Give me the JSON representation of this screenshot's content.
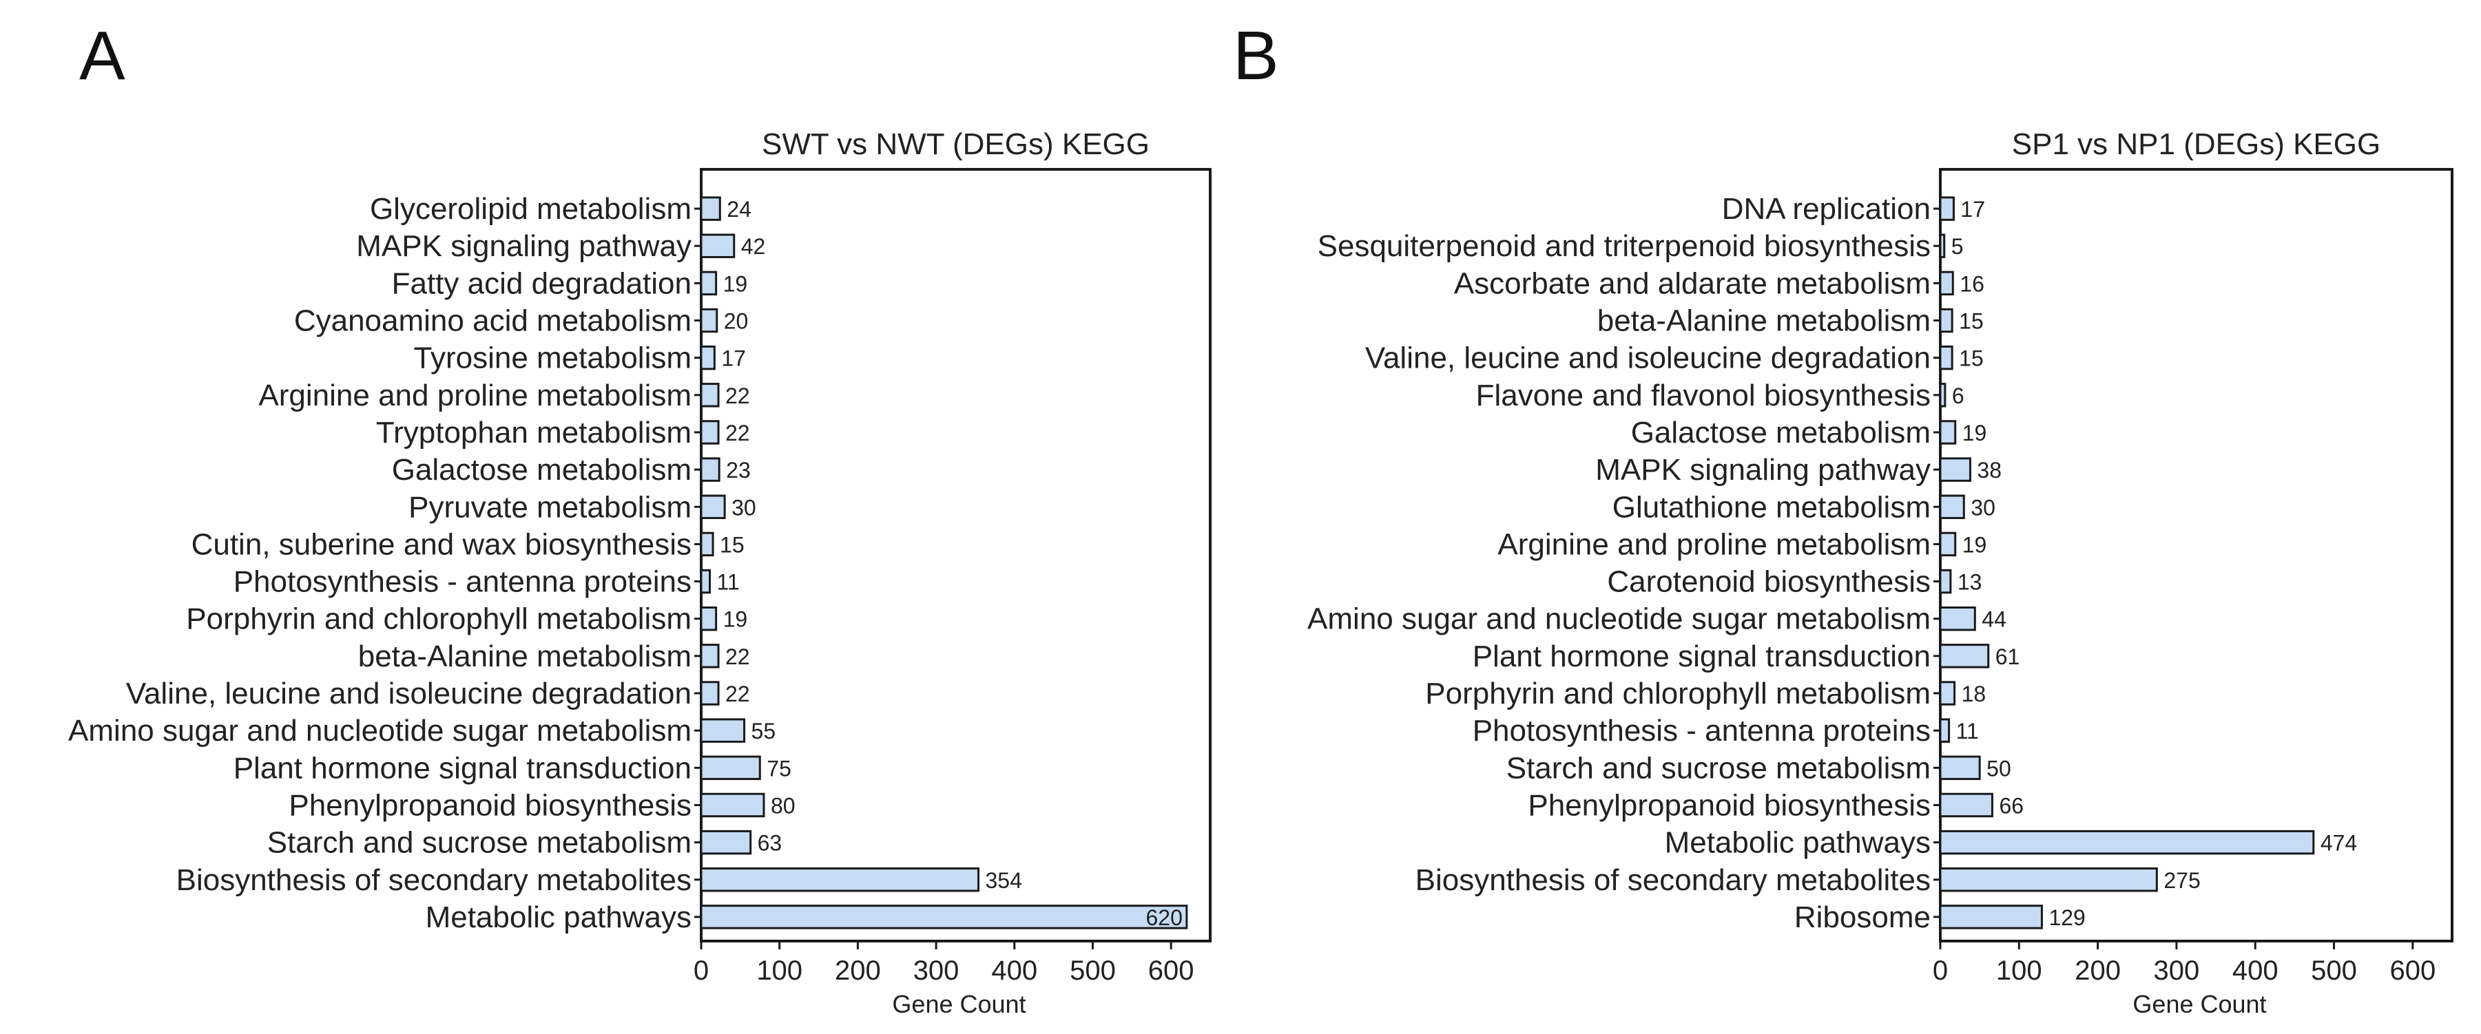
{
  "panels": [
    "A",
    "B"
  ],
  "chart_data": [
    {
      "type": "bar",
      "orientation": "horizontal",
      "panel": "A",
      "title": "SWT vs NWT (DEGs) KEGG",
      "xlabel": "Gene Count",
      "ylabel": "",
      "xlim": [
        0,
        650
      ],
      "xticks": [
        0,
        100,
        200,
        300,
        400,
        500,
        600
      ],
      "bar_color": "#c6dcf5",
      "edge_color": "#1a1a1a",
      "categories": [
        "Glycerolipid metabolism",
        "MAPK signaling pathway",
        "Fatty acid degradation",
        "Cyanoamino acid metabolism",
        "Tyrosine metabolism",
        "Arginine and proline metabolism",
        "Tryptophan metabolism",
        "Galactose metabolism",
        "Pyruvate metabolism",
        "Cutin, suberine and wax biosynthesis",
        "Photosynthesis - antenna proteins",
        "Porphyrin and chlorophyll metabolism",
        "beta-Alanine metabolism",
        "Valine, leucine and isoleucine degradation",
        "Amino sugar and nucleotide sugar metabolism",
        "Plant hormone signal transduction",
        "Phenylpropanoid biosynthesis",
        "Starch and sucrose metabolism",
        "Biosynthesis of secondary metabolites",
        "Metabolic pathways"
      ],
      "values": [
        24,
        42,
        19,
        20,
        17,
        22,
        22,
        23,
        30,
        15,
        11,
        19,
        22,
        22,
        55,
        75,
        80,
        63,
        354,
        620
      ]
    },
    {
      "type": "bar",
      "orientation": "horizontal",
      "panel": "B",
      "title": "SP1 vs NP1 (DEGs) KEGG",
      "xlabel": "Gene Count",
      "ylabel": "",
      "xlim": [
        0,
        650
      ],
      "xticks": [
        0,
        100,
        200,
        300,
        400,
        500,
        600
      ],
      "bar_color": "#c6dcf5",
      "edge_color": "#1a1a1a",
      "categories": [
        "DNA replication",
        "Sesquiterpenoid and triterpenoid biosynthesis",
        "Ascorbate and aldarate metabolism",
        "beta-Alanine metabolism",
        "Valine, leucine and isoleucine degradation",
        "Flavone and flavonol biosynthesis",
        "Galactose metabolism",
        "MAPK signaling pathway",
        "Glutathione metabolism",
        "Arginine and proline metabolism",
        "Carotenoid biosynthesis",
        "Amino sugar and nucleotide sugar metabolism",
        "Plant hormone signal transduction",
        "Porphyrin and chlorophyll metabolism",
        "Photosynthesis - antenna proteins",
        "Starch and sucrose metabolism",
        "Phenylpropanoid biosynthesis",
        "Metabolic pathways",
        "Biosynthesis of secondary metabolites",
        "Ribosome"
      ],
      "values": [
        17,
        5,
        16,
        15,
        15,
        6,
        19,
        38,
        30,
        19,
        13,
        44,
        61,
        18,
        11,
        50,
        66,
        474,
        275,
        129
      ]
    }
  ]
}
